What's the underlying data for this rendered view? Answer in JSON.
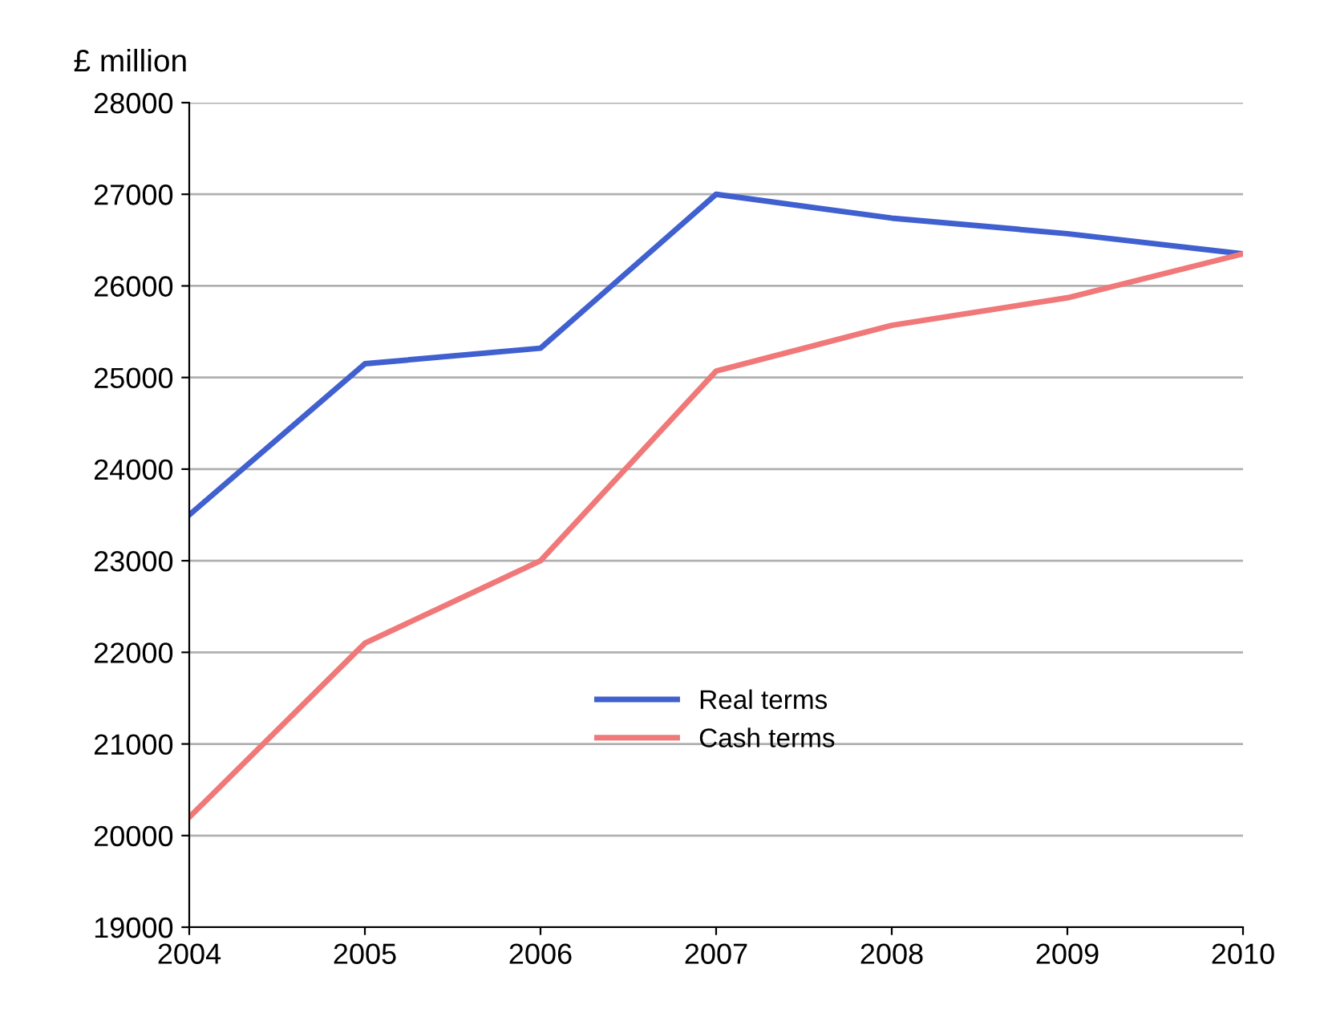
{
  "chart_data": {
    "type": "line",
    "ylabel": "£ million",
    "x": [
      2004,
      2005,
      2006,
      2007,
      2008,
      2009,
      2010
    ],
    "series": [
      {
        "name": "Real terms",
        "color": "#4060d0",
        "values": [
          23500,
          25150,
          25320,
          27000,
          26740,
          26570,
          26350
        ]
      },
      {
        "name": "Cash terms",
        "color": "#f07878",
        "values": [
          20200,
          22100,
          23000,
          25070,
          25570,
          25870,
          26350
        ]
      }
    ],
    "xlim": [
      2004,
      2010
    ],
    "xticks": [
      2004,
      2005,
      2006,
      2007,
      2008,
      2009,
      2010
    ],
    "ylim": [
      19000,
      28000
    ],
    "yticks": [
      19000,
      20000,
      21000,
      22000,
      23000,
      24000,
      25000,
      26000,
      27000,
      28000
    ],
    "grid": "y",
    "legend": "center",
    "marker": "none",
    "line_style": "solid"
  }
}
